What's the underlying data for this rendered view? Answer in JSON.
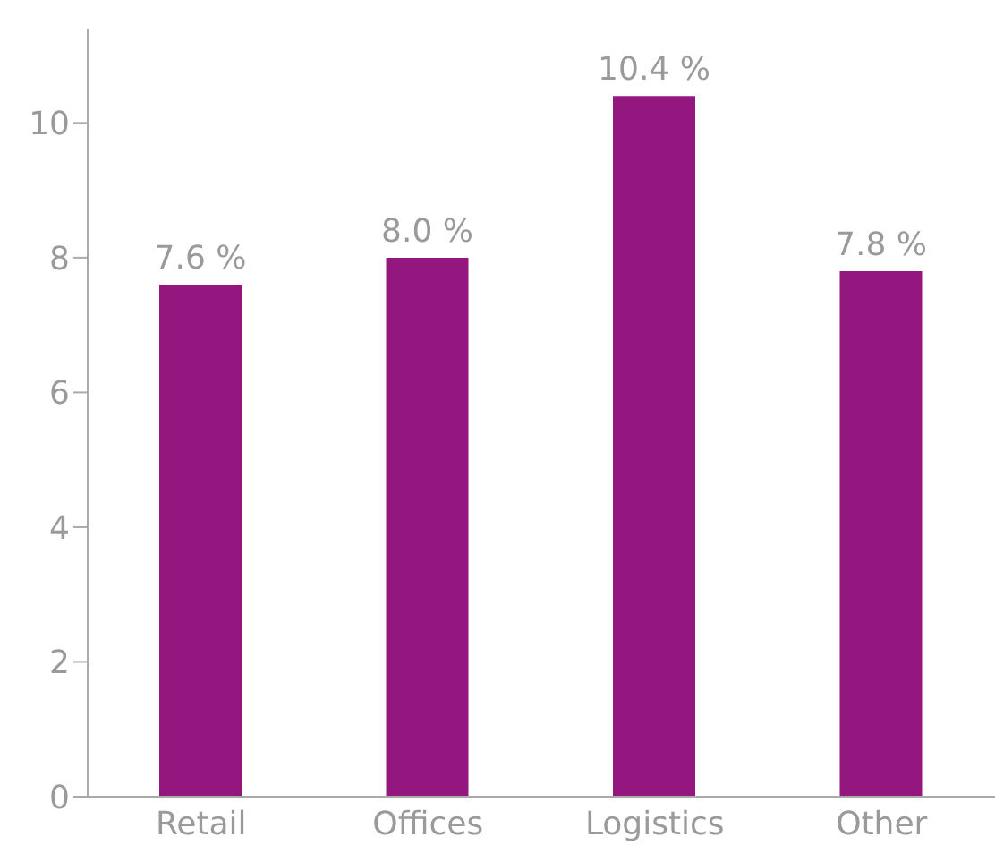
{
  "chart_data": {
    "type": "bar",
    "categories": [
      "Retail",
      "Offices",
      "Logistics",
      "Other"
    ],
    "values": [
      7.6,
      8.0,
      10.4,
      7.8
    ],
    "color": "#93177e",
    "value_labels": [
      "7.6 %",
      "8.0 %",
      "10.4 %",
      "7.8 %"
    ],
    "ylim": [
      0,
      11.4
    ],
    "yticks": [
      0,
      2,
      4,
      6,
      8,
      10
    ],
    "grid": false,
    "legend": false
  }
}
